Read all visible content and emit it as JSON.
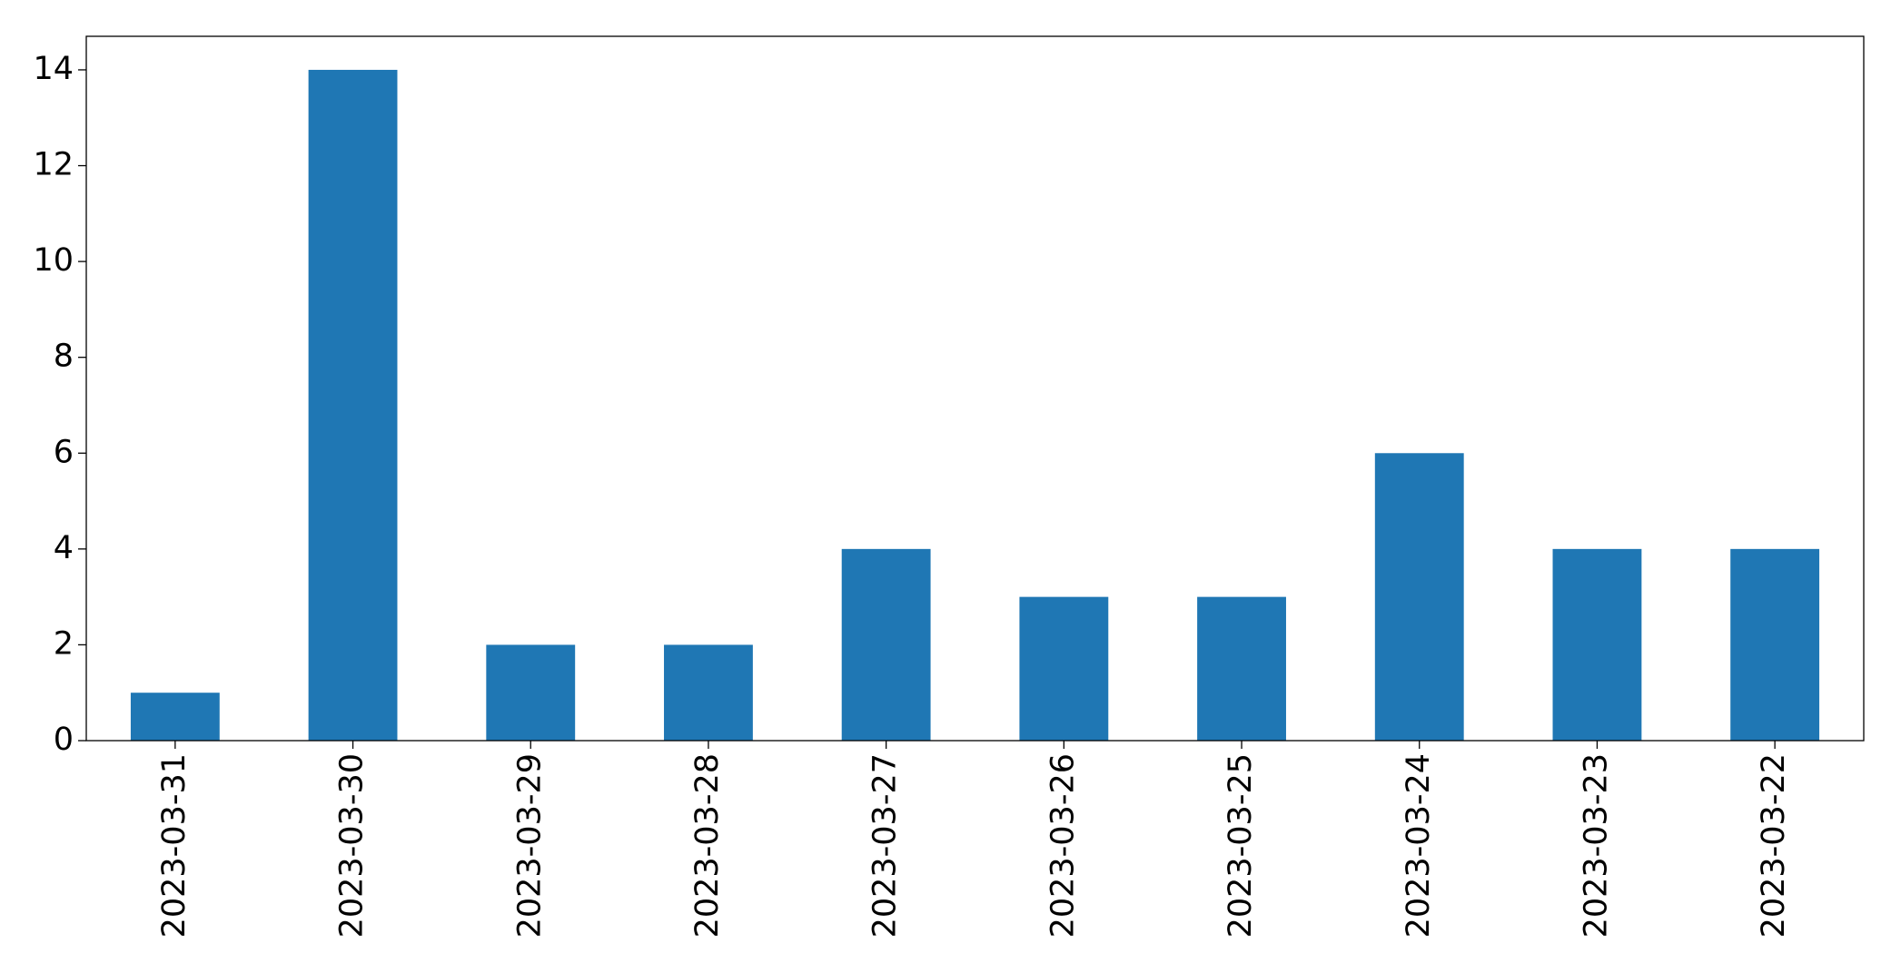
{
  "chart_data": {
    "type": "bar",
    "categories": [
      "2023-03-31",
      "2023-03-30",
      "2023-03-29",
      "2023-03-28",
      "2023-03-27",
      "2023-03-26",
      "2023-03-25",
      "2023-03-24",
      "2023-03-23",
      "2023-03-22"
    ],
    "values": [
      1,
      14,
      2,
      2,
      4,
      3,
      3,
      6,
      4,
      4
    ],
    "color": "#1f77b4",
    "ylim": [
      0,
      14.7
    ],
    "yticks": [
      0,
      2,
      4,
      6,
      8,
      10,
      12,
      14
    ],
    "grid": false
  }
}
